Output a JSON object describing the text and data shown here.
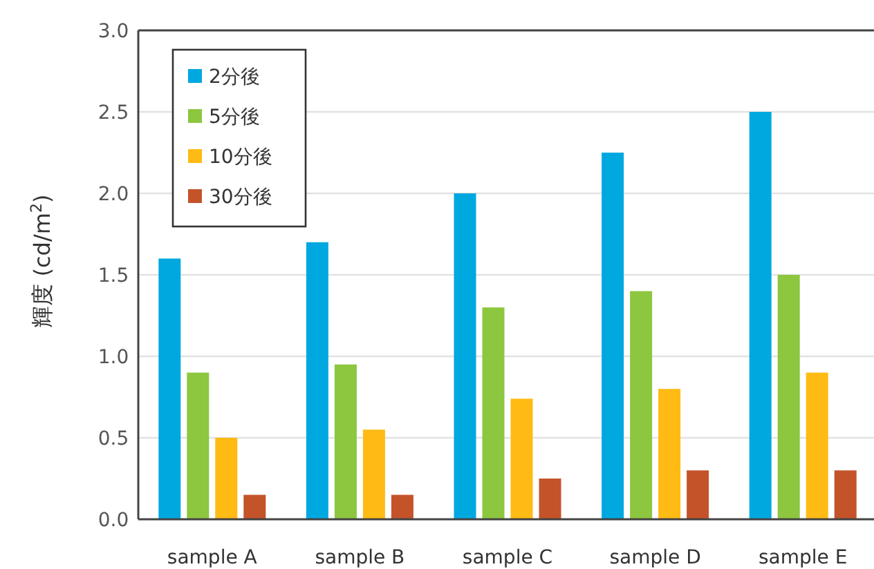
{
  "chart_data": {
    "type": "bar",
    "ylabel": "輝度 (cd/m$^{2}$)",
    "categories": [
      "sample A",
      "sample B",
      "sample C",
      "sample D",
      "sample E"
    ],
    "series": [
      {
        "name": "2分後",
        "color": "#00a8e0",
        "values": [
          1.6,
          1.7,
          2.0,
          2.25,
          2.5
        ]
      },
      {
        "name": "5分後",
        "color": "#8dc63f",
        "values": [
          0.9,
          0.95,
          1.3,
          1.4,
          1.5
        ]
      },
      {
        "name": "10分後",
        "color": "#ffbb14",
        "values": [
          0.5,
          0.55,
          0.74,
          0.8,
          0.9
        ]
      },
      {
        "name": "30分後",
        "color": "#c4532a",
        "values": [
          0.15,
          0.15,
          0.25,
          0.3,
          0.3
        ]
      }
    ],
    "ylim": [
      0,
      3.0
    ],
    "yticks": [
      {
        "value": 0,
        "label": "0.0"
      },
      {
        "value": 0.5,
        "label": "0.5"
      },
      {
        "value": 1,
        "label": "1.0"
      },
      {
        "value": 1.5,
        "label": "1.5"
      },
      {
        "value": 2,
        "label": "2.0"
      },
      {
        "value": 2.5,
        "label": "2.5"
      },
      {
        "value": 3,
        "label": "3.0"
      }
    ],
    "grid": "y",
    "legend": "top left"
  }
}
